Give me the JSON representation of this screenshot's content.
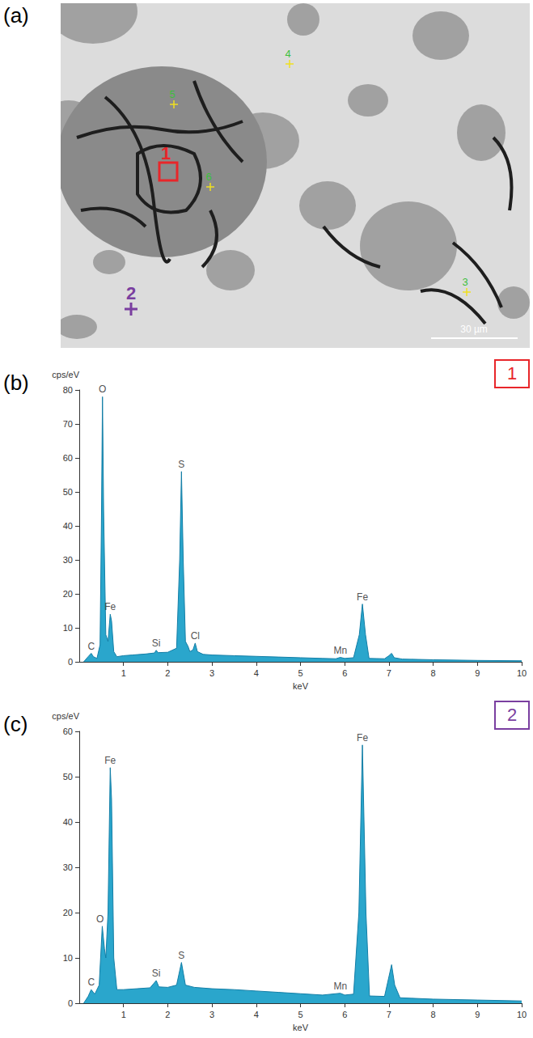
{
  "image_panel": {
    "letter": "(a)",
    "scale_bar": "30 µm",
    "markers": [
      {
        "label": "1",
        "kind": "box"
      },
      {
        "label": "2",
        "kind": "cross"
      },
      {
        "label": "5",
        "kind": "point"
      },
      {
        "label": "6",
        "kind": "point"
      },
      {
        "label": "4",
        "kind": "point"
      },
      {
        "label": "3",
        "kind": "point"
      }
    ]
  },
  "chart_data": [
    {
      "type": "area",
      "letter": "(b)",
      "tag": "1",
      "x_label": "keV",
      "y_label": "cps/eV",
      "color": "#2aa6cc",
      "x": [
        0.1,
        0.2,
        0.27,
        0.32,
        0.4,
        0.47,
        0.5,
        0.525,
        0.55,
        0.6,
        0.65,
        0.7,
        0.73,
        0.78,
        0.85,
        1.0,
        1.2,
        1.5,
        1.7,
        1.74,
        1.78,
        2.0,
        2.2,
        2.27,
        2.31,
        2.35,
        2.4,
        2.46,
        2.5,
        2.57,
        2.62,
        2.67,
        2.8,
        3.0,
        3.5,
        4.0,
        4.5,
        5.0,
        5.5,
        5.8,
        5.9,
        6.0,
        6.2,
        6.33,
        6.4,
        6.47,
        6.55,
        6.9,
        7.0,
        7.06,
        7.12,
        7.3,
        8.0,
        9.0,
        10.0
      ],
      "values": [
        0,
        1.5,
        2.5,
        1.5,
        1,
        5,
        40,
        78,
        45,
        8,
        6,
        14,
        12,
        3,
        1.5,
        1.8,
        2,
        2.3,
        2.6,
        3.4,
        2.7,
        2.8,
        4,
        30,
        56,
        30,
        6,
        4.5,
        3,
        3.5,
        5.5,
        3,
        2.2,
        2.0,
        1.8,
        1.6,
        1.4,
        1.2,
        1.0,
        0.9,
        1.3,
        1.0,
        1.2,
        8,
        17,
        8,
        1.0,
        0.9,
        1.8,
        2.5,
        1.2,
        0.8,
        0.6,
        0.4,
        0.3
      ],
      "xlim": [
        0,
        10
      ],
      "xticks": [
        1,
        2,
        3,
        4,
        5,
        6,
        7,
        8,
        9,
        10
      ],
      "ylim": [
        0,
        80
      ],
      "yticks": [
        0,
        10,
        20,
        30,
        40,
        50,
        60,
        70,
        80
      ],
      "grid": false,
      "annotations": [
        {
          "text": "C",
          "x": 0.27,
          "y": 2.5
        },
        {
          "text": "O",
          "x": 0.525,
          "y": 78
        },
        {
          "text": "Fe",
          "x": 0.7,
          "y": 14
        },
        {
          "text": "Si",
          "x": 1.74,
          "y": 3.4
        },
        {
          "text": "S",
          "x": 2.31,
          "y": 56
        },
        {
          "text": "Cl",
          "x": 2.62,
          "y": 5.5
        },
        {
          "text": "Mn",
          "x": 5.9,
          "y": 1.3
        },
        {
          "text": "Fe",
          "x": 6.4,
          "y": 17
        }
      ]
    },
    {
      "type": "area",
      "letter": "(c)",
      "tag": "2",
      "x_label": "keV",
      "y_label": "cps/eV",
      "color": "#2aa6cc",
      "x": [
        0.1,
        0.2,
        0.27,
        0.35,
        0.45,
        0.52,
        0.57,
        0.6,
        0.65,
        0.7,
        0.73,
        0.78,
        0.85,
        1.0,
        1.3,
        1.6,
        1.74,
        1.8,
        2.0,
        2.2,
        2.31,
        2.4,
        2.6,
        3.0,
        3.5,
        4.0,
        4.5,
        5.0,
        5.5,
        5.9,
        6.0,
        6.2,
        6.32,
        6.4,
        6.48,
        6.56,
        6.9,
        6.98,
        7.06,
        7.13,
        7.25,
        8.0,
        9.0,
        10.0
      ],
      "values": [
        0,
        1.5,
        3,
        2,
        4,
        17,
        12,
        10,
        20,
        52,
        45,
        10,
        3,
        3,
        3.2,
        3.4,
        5,
        3.6,
        3.5,
        4,
        9,
        4,
        3.5,
        3.2,
        3,
        2.7,
        2.4,
        2.1,
        1.8,
        2.2,
        1.8,
        2,
        20,
        57,
        20,
        1.6,
        1.5,
        5,
        8.5,
        4,
        1.2,
        0.9,
        0.7,
        0.5
      ],
      "xlim": [
        0,
        10
      ],
      "xticks": [
        1,
        2,
        3,
        4,
        5,
        6,
        7,
        8,
        9,
        10
      ],
      "ylim": [
        0,
        60
      ],
      "yticks": [
        0,
        10,
        20,
        30,
        40,
        50,
        60
      ],
      "grid": false,
      "annotations": [
        {
          "text": "C",
          "x": 0.27,
          "y": 3
        },
        {
          "text": "O",
          "x": 0.47,
          "y": 17
        },
        {
          "text": "Fe",
          "x": 0.7,
          "y": 52
        },
        {
          "text": "Si",
          "x": 1.74,
          "y": 5
        },
        {
          "text": "S",
          "x": 2.31,
          "y": 9
        },
        {
          "text": "Mn",
          "x": 5.9,
          "y": 2.2
        },
        {
          "text": "Fe",
          "x": 6.4,
          "y": 57
        }
      ]
    }
  ]
}
